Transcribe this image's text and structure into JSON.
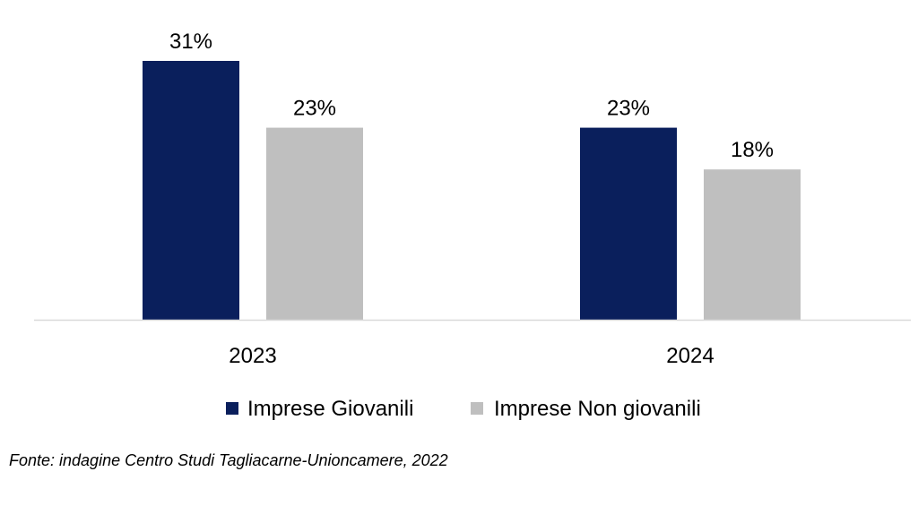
{
  "chart_data": {
    "type": "bar",
    "categories": [
      "2023",
      "2024"
    ],
    "series": [
      {
        "name": "Imprese Giovanili",
        "values": [
          31,
          23
        ],
        "color": "#0a1f5c"
      },
      {
        "name": "Imprese Non giovanili",
        "values": [
          23,
          18
        ],
        "color": "#bfbfbf"
      }
    ],
    "value_suffix": "%",
    "ylim": [
      0,
      31
    ],
    "grid": false,
    "legend": "bottom",
    "title": "",
    "xlabel": "",
    "ylabel": ""
  },
  "source": "Fonte: indagine Centro Studi Tagliacarne-Unioncamere, 2022"
}
